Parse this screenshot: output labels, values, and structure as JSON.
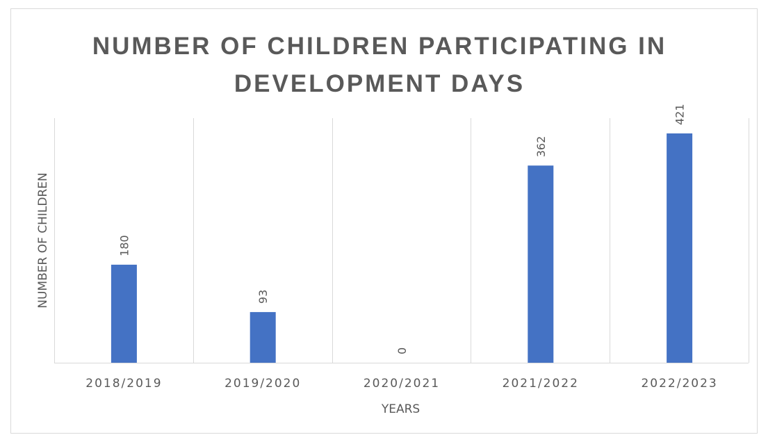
{
  "chart_data": {
    "type": "bar",
    "title_lines": [
      "NUMBER OF CHILDREN PARTICIPATING IN",
      "DEVELOPMENT DAYS"
    ],
    "categories": [
      "2018/2019",
      "2019/2020",
      "2020/2021",
      "2021/2022",
      "2022/2023"
    ],
    "values": [
      180,
      93,
      0,
      362,
      421
    ],
    "data_labels": [
      "180",
      "93",
      "0",
      "362",
      "421"
    ],
    "xlabel": "YEARS",
    "ylabel": "NUMBER OF CHILDREN",
    "ylim": [
      0,
      450
    ],
    "grid": "vertical",
    "bar_color": "#4472c4",
    "grid_color": "#d9d9d9",
    "text_color": "#595959"
  }
}
